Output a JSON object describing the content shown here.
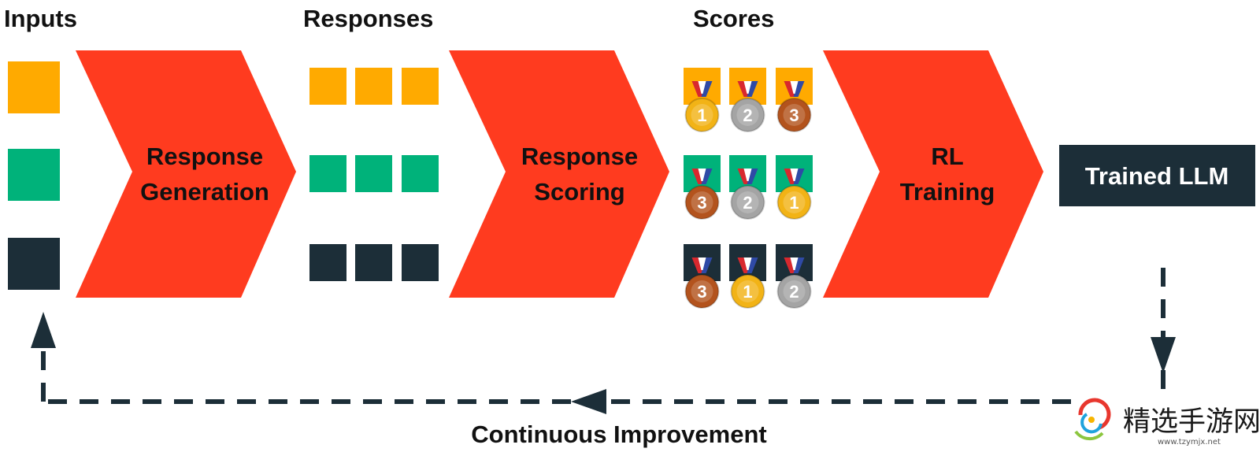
{
  "colors": {
    "orange": "#FFAA00",
    "green": "#00B27A",
    "dark": "#1C2E38",
    "chevron": "#FF3B1F",
    "gold": "#F2B316",
    "silver": "#A4A4A4",
    "bronze": "#B3531D",
    "ribbon_red": "#D8282E",
    "ribbon_blue": "#2F4AA6",
    "ribbon_white": "#FFFFFF"
  },
  "headings": {
    "inputs": "Inputs",
    "responses": "Responses",
    "scores": "Scores"
  },
  "stages": [
    {
      "line1": "Response",
      "line2": "Generation"
    },
    {
      "line1": "Response",
      "line2": "Scoring"
    },
    {
      "line1": "RL",
      "line2": "Training"
    }
  ],
  "inputs": [
    {
      "color": "orange"
    },
    {
      "color": "green"
    },
    {
      "color": "dark"
    }
  ],
  "responses": [
    {
      "color": "orange",
      "count": 3
    },
    {
      "color": "green",
      "count": 3
    },
    {
      "color": "dark",
      "count": 3
    }
  ],
  "scores": [
    {
      "color": "orange",
      "ranks": [
        1,
        2,
        3
      ]
    },
    {
      "color": "green",
      "ranks": [
        3,
        2,
        1
      ]
    },
    {
      "color": "dark",
      "ranks": [
        3,
        1,
        2
      ]
    }
  ],
  "output": {
    "label": "Trained LLM"
  },
  "feedback": {
    "label": "Continuous Improvement",
    "icon": "dashed-arrow-loop"
  },
  "watermark": {
    "name": "精选手游网",
    "url": "www.tzymjx.net",
    "icon": "swirl-logo-icon"
  }
}
